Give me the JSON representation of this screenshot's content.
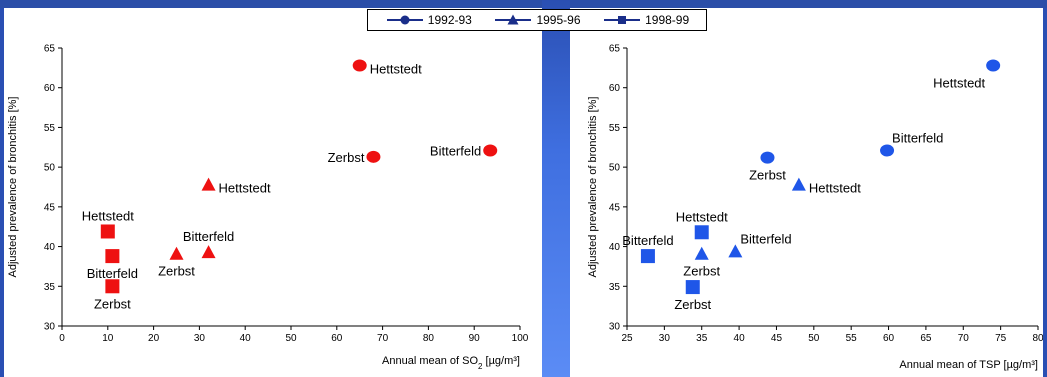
{
  "legend": [
    {
      "label": "1992-93",
      "marker": "circle"
    },
    {
      "label": "1995-96",
      "marker": "triangle"
    },
    {
      "label": "1998-99",
      "marker": "square"
    }
  ],
  "colors": {
    "left_series": "#ee1111",
    "right_series": "#1f56e8",
    "legend_line": "#1a2e8a"
  },
  "chart_data": [
    {
      "type": "scatter",
      "title": "",
      "ylabel": "Adjusted prevalence of bronchitis [%]",
      "xlabel_main": "Annual mean of SO",
      "xlabel_sub": "2",
      "xlabel_unit": " [µg/m³]",
      "xlim": [
        0,
        100
      ],
      "ylim": [
        30,
        65
      ],
      "xticks": [
        0,
        10,
        20,
        30,
        40,
        50,
        60,
        70,
        80,
        90,
        100
      ],
      "yticks": [
        30,
        35,
        40,
        45,
        50,
        55,
        60,
        65
      ],
      "points": [
        {
          "series": "1992-93",
          "marker": "circle",
          "label": "Hettstedt",
          "x": 65,
          "y": 62.8,
          "anchor": "right"
        },
        {
          "series": "1992-93",
          "marker": "circle",
          "label": "Zerbst",
          "x": 68,
          "y": 51.3,
          "anchor": "left"
        },
        {
          "series": "1992-93",
          "marker": "circle",
          "label": "Bitterfeld",
          "x": 93.5,
          "y": 52.1,
          "anchor": "left"
        },
        {
          "series": "1995-96",
          "marker": "triangle",
          "label": "Hettstedt",
          "x": 32,
          "y": 47.8,
          "anchor": "right"
        },
        {
          "series": "1995-96",
          "marker": "triangle",
          "label": "Bitterfeld",
          "x": 32,
          "y": 39.3,
          "anchor": "above"
        },
        {
          "series": "1995-96",
          "marker": "triangle",
          "label": "Zerbst",
          "x": 25,
          "y": 39.1,
          "anchor": "below"
        },
        {
          "series": "1998-99",
          "marker": "square",
          "label": "Hettstedt",
          "x": 10,
          "y": 41.9,
          "anchor": "above"
        },
        {
          "series": "1998-99",
          "marker": "square",
          "label": "Bitterfeld",
          "x": 11,
          "y": 38.8,
          "anchor": "below"
        },
        {
          "series": "1998-99",
          "marker": "square",
          "label": "Zerbst",
          "x": 11,
          "y": 35.0,
          "anchor": "below"
        }
      ]
    },
    {
      "type": "scatter",
      "title": "",
      "ylabel": "Adjusted prevalence of bronchitis [%]",
      "xlabel_main": "Annual mean of TSP",
      "xlabel_sub": "",
      "xlabel_unit": " [µg/m³]",
      "xlim": [
        25,
        80
      ],
      "ylim": [
        30,
        65
      ],
      "xticks": [
        25,
        30,
        35,
        40,
        45,
        50,
        55,
        60,
        65,
        70,
        75,
        80
      ],
      "yticks": [
        30,
        35,
        40,
        45,
        50,
        55,
        60,
        65
      ],
      "points": [
        {
          "series": "1992-93",
          "marker": "circle",
          "label": "Hettstedt",
          "x": 74,
          "y": 62.8,
          "anchor": "below-left"
        },
        {
          "series": "1992-93",
          "marker": "circle",
          "label": "Zerbst",
          "x": 43.8,
          "y": 51.2,
          "anchor": "below"
        },
        {
          "series": "1992-93",
          "marker": "circle",
          "label": "Bitterfeld",
          "x": 59.8,
          "y": 52.1,
          "anchor": "above-right"
        },
        {
          "series": "1995-96",
          "marker": "triangle",
          "label": "Hettstedt",
          "x": 48,
          "y": 47.8,
          "anchor": "right"
        },
        {
          "series": "1995-96",
          "marker": "triangle",
          "label": "Zerbst",
          "x": 35,
          "y": 39.1,
          "anchor": "below"
        },
        {
          "series": "1995-96",
          "marker": "triangle",
          "label": "Bitterfeld",
          "x": 39.5,
          "y": 39.4,
          "anchor": "above-right"
        },
        {
          "series": "1998-99",
          "marker": "square",
          "label": "Hettstedt",
          "x": 35,
          "y": 41.8,
          "anchor": "above"
        },
        {
          "series": "1998-99",
          "marker": "square",
          "label": "Bitterfeld",
          "x": 27.8,
          "y": 38.8,
          "anchor": "above"
        },
        {
          "series": "1998-99",
          "marker": "square",
          "label": "Zerbst",
          "x": 33.8,
          "y": 34.9,
          "anchor": "below"
        }
      ]
    }
  ]
}
